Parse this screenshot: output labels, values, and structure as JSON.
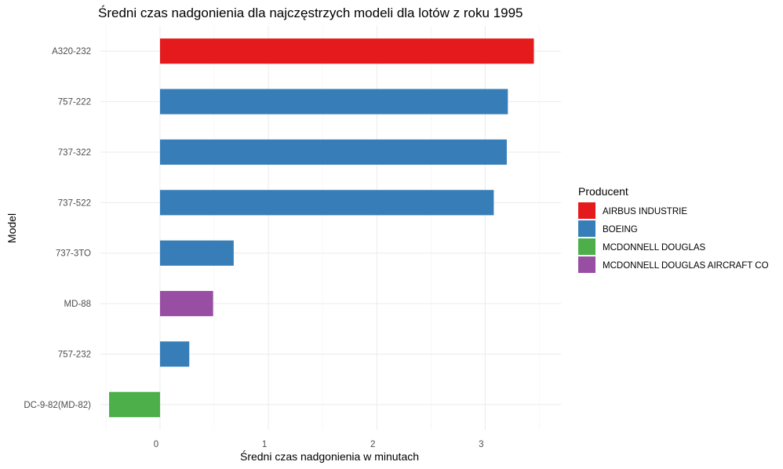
{
  "chart_data": {
    "type": "bar",
    "orientation": "horizontal",
    "title": "Średni czas nadgonienia dla najczęstrzych modeli dla lotów z roku 1995",
    "xlabel": "Średni czas nadgonienia w minutach",
    "ylabel": "Model",
    "xlim": [
      -0.55,
      3.7
    ],
    "xticks": [
      0,
      1,
      2,
      3
    ],
    "grid": true,
    "legend": {
      "title": "Producent",
      "position": "right",
      "entries": [
        {
          "name": "AIRBUS INDUSTRIE",
          "color": "#e41a1c"
        },
        {
          "name": "BOEING",
          "color": "#377eb8"
        },
        {
          "name": "MCDONNELL DOUGLAS",
          "color": "#4daf4a"
        },
        {
          "name": "MCDONNELL DOUGLAS AIRCRAFT CO",
          "color": "#984ea3"
        }
      ]
    },
    "bars": [
      {
        "category": "A320-232",
        "value": 3.45,
        "producer": "AIRBUS INDUSTRIE"
      },
      {
        "category": "757-222",
        "value": 3.21,
        "producer": "BOEING"
      },
      {
        "category": "737-322",
        "value": 3.2,
        "producer": "BOEING"
      },
      {
        "category": "737-522",
        "value": 3.08,
        "producer": "BOEING"
      },
      {
        "category": "737-3TO",
        "value": 0.68,
        "producer": "BOEING"
      },
      {
        "category": "MD-88",
        "value": 0.49,
        "producer": "MCDONNELL DOUGLAS AIRCRAFT CO"
      },
      {
        "category": "757-232",
        "value": 0.27,
        "producer": "BOEING"
      },
      {
        "category": "DC-9-82(MD-82)",
        "value": -0.47,
        "producer": "MCDONNELL DOUGLAS"
      }
    ]
  }
}
